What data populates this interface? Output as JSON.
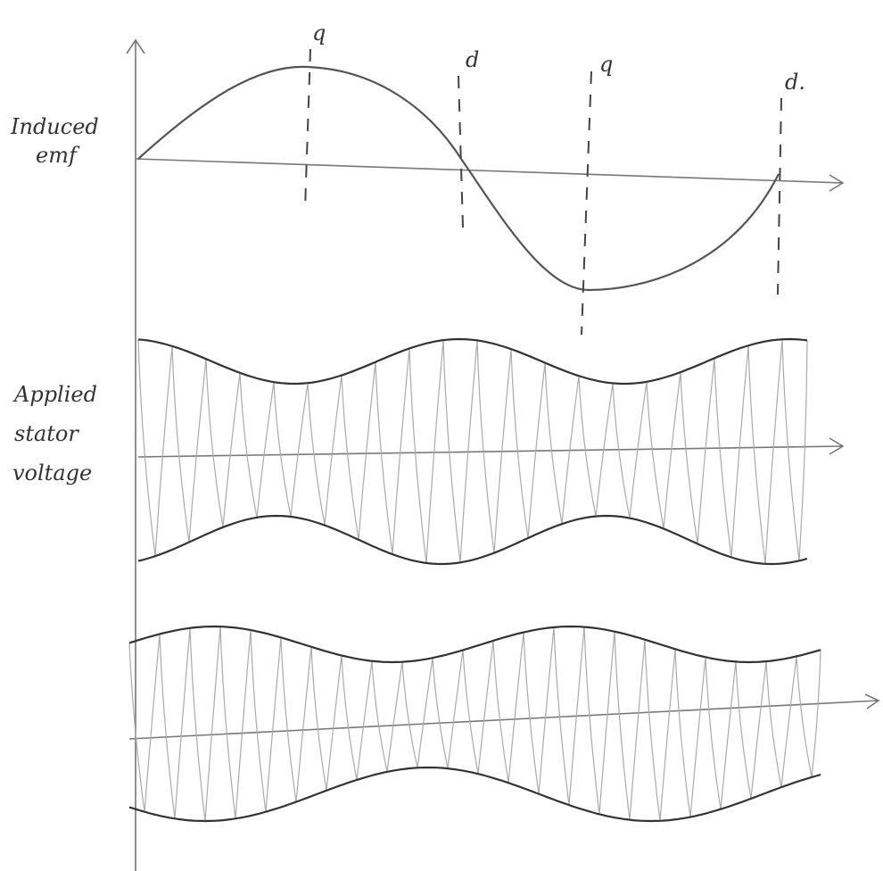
{
  "axis_markers": [
    {
      "label": "q"
    },
    {
      "label": "d"
    },
    {
      "label": "q"
    },
    {
      "label": "d."
    }
  ],
  "traces": [
    {
      "label_lines": [
        "Induced",
        "emf"
      ]
    },
    {
      "label_lines": [
        "Applied",
        "stator",
        "voltage"
      ]
    }
  ]
}
